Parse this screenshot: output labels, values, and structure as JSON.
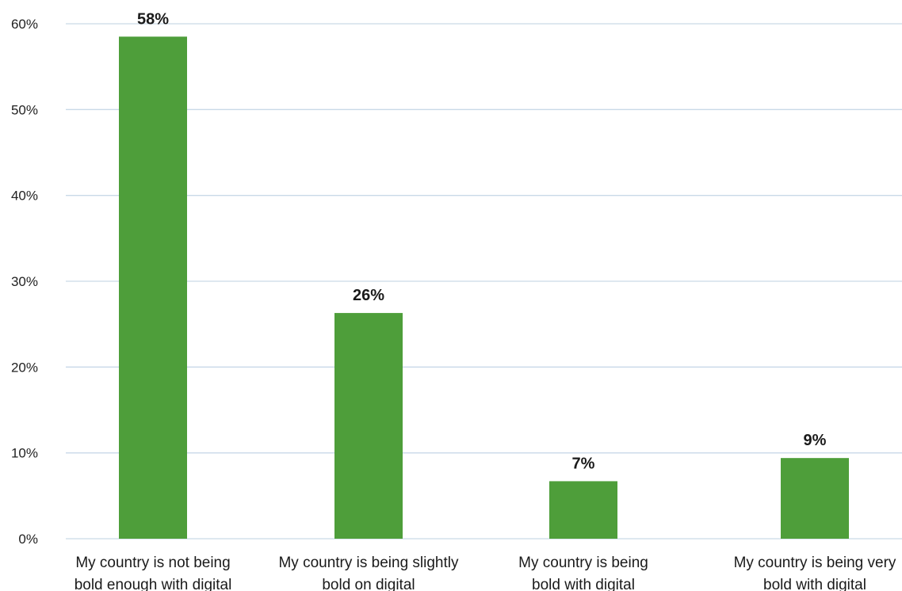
{
  "chart_data": {
    "type": "bar",
    "title": "",
    "xlabel": "",
    "ylabel": "",
    "categories": [
      [
        "My country is not being",
        "bold enough with digital"
      ],
      [
        "My country is being slightly",
        "bold on digital"
      ],
      [
        "My country is being",
        "bold with digital"
      ],
      [
        "My country is being very",
        "bold with digital"
      ]
    ],
    "values": [
      58.5,
      26.3,
      6.7,
      9.4
    ],
    "data_labels": [
      "58%",
      "26%",
      "7%",
      "9%"
    ],
    "y_ticks": [
      0,
      10,
      20,
      30,
      40,
      50,
      60
    ],
    "y_tick_labels": [
      "0%",
      "10%",
      "20%",
      "30%",
      "40%",
      "50%",
      "60%"
    ],
    "ylim": [
      0,
      60
    ],
    "grid": true,
    "legend": "none",
    "colors": {
      "bar": "#4e9e3a",
      "grid": "#c9d9e8",
      "text": "#1a1a1a"
    }
  }
}
